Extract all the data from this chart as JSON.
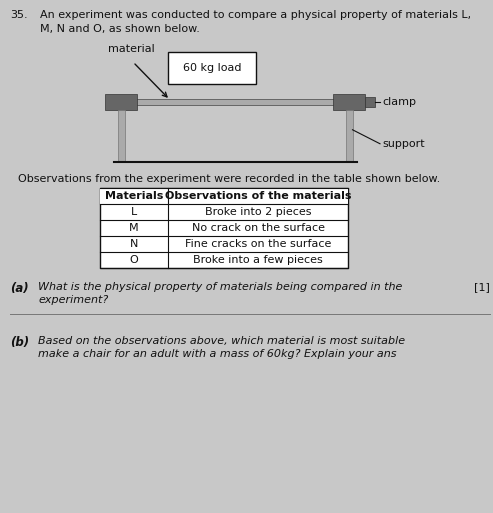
{
  "bg_color": "#c8c8c8",
  "page_color": "#e8e8e8",
  "question_number": "35.",
  "intro_text": "An experiment was conducted to compare a physical property of materials L,\nM, N and O, as shown below.",
  "material_label": "material",
  "load_label": "60 kg load",
  "clamp_label": "clamp",
  "support_label": "support",
  "obs_intro": "Observations from the experiment were recorded in the table shown below.",
  "table_headers": [
    "Materials",
    "Observations of the materials"
  ],
  "table_rows": [
    [
      "L",
      "Broke into 2 pieces"
    ],
    [
      "M",
      "No crack on the surface"
    ],
    [
      "N",
      "Fine cracks on the surface"
    ],
    [
      "O",
      "Broke into a few pieces"
    ]
  ],
  "part_a_label": "(a)",
  "part_a_text_line1": "What is the physical property of materials being compared in the",
  "part_a_text_line2": "experiment?",
  "part_a_marks": "[1]",
  "part_b_label": "(b)",
  "part_b_text_line1": "Based on the observations above, which material is most suitable",
  "part_b_text_line2": "make a chair for an adult with a mass of 60kg? Explain your ans",
  "clamp_color": "#666666",
  "support_color": "#aaaaaa",
  "bar_color": "#aaaaaa",
  "box_color": "#ffffff",
  "text_color": "#111111",
  "line_color": "#444444"
}
